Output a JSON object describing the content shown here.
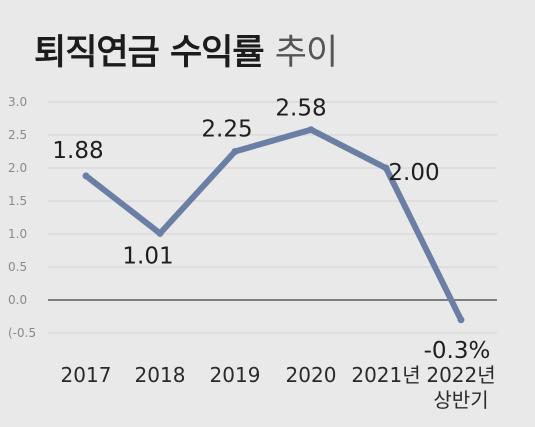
{
  "title": {
    "main": "퇴직연금 수익률",
    "sub": "추이"
  },
  "chart_data": {
    "type": "line",
    "title": "퇴직연금 수익률 추이",
    "categories": [
      "2017",
      "2018",
      "2019",
      "2020",
      "2021년",
      "2022년 상반기"
    ],
    "category_lines": [
      [
        "2017"
      ],
      [
        "2018"
      ],
      [
        "2019"
      ],
      [
        "2020"
      ],
      [
        "2021년"
      ],
      [
        "2022년",
        "상반기"
      ]
    ],
    "series": [
      {
        "values": [
          1.88,
          1.01,
          2.25,
          2.58,
          2.0,
          -0.3
        ]
      }
    ],
    "data_labels": [
      "1.88",
      "1.01",
      "2.25",
      "2.58",
      "2.00",
      "-0.3%"
    ],
    "y_ticks": [
      "3.0",
      "2.5",
      "2.0",
      "1.5",
      "1.0",
      "0.5",
      "0.0",
      "(-0.5"
    ],
    "ylim": [
      -0.5,
      3.0
    ],
    "grid": true,
    "line_color": "#6a7fa3",
    "zero_line_color": "#5a5a5a",
    "grid_color": "#d2d2d2"
  }
}
